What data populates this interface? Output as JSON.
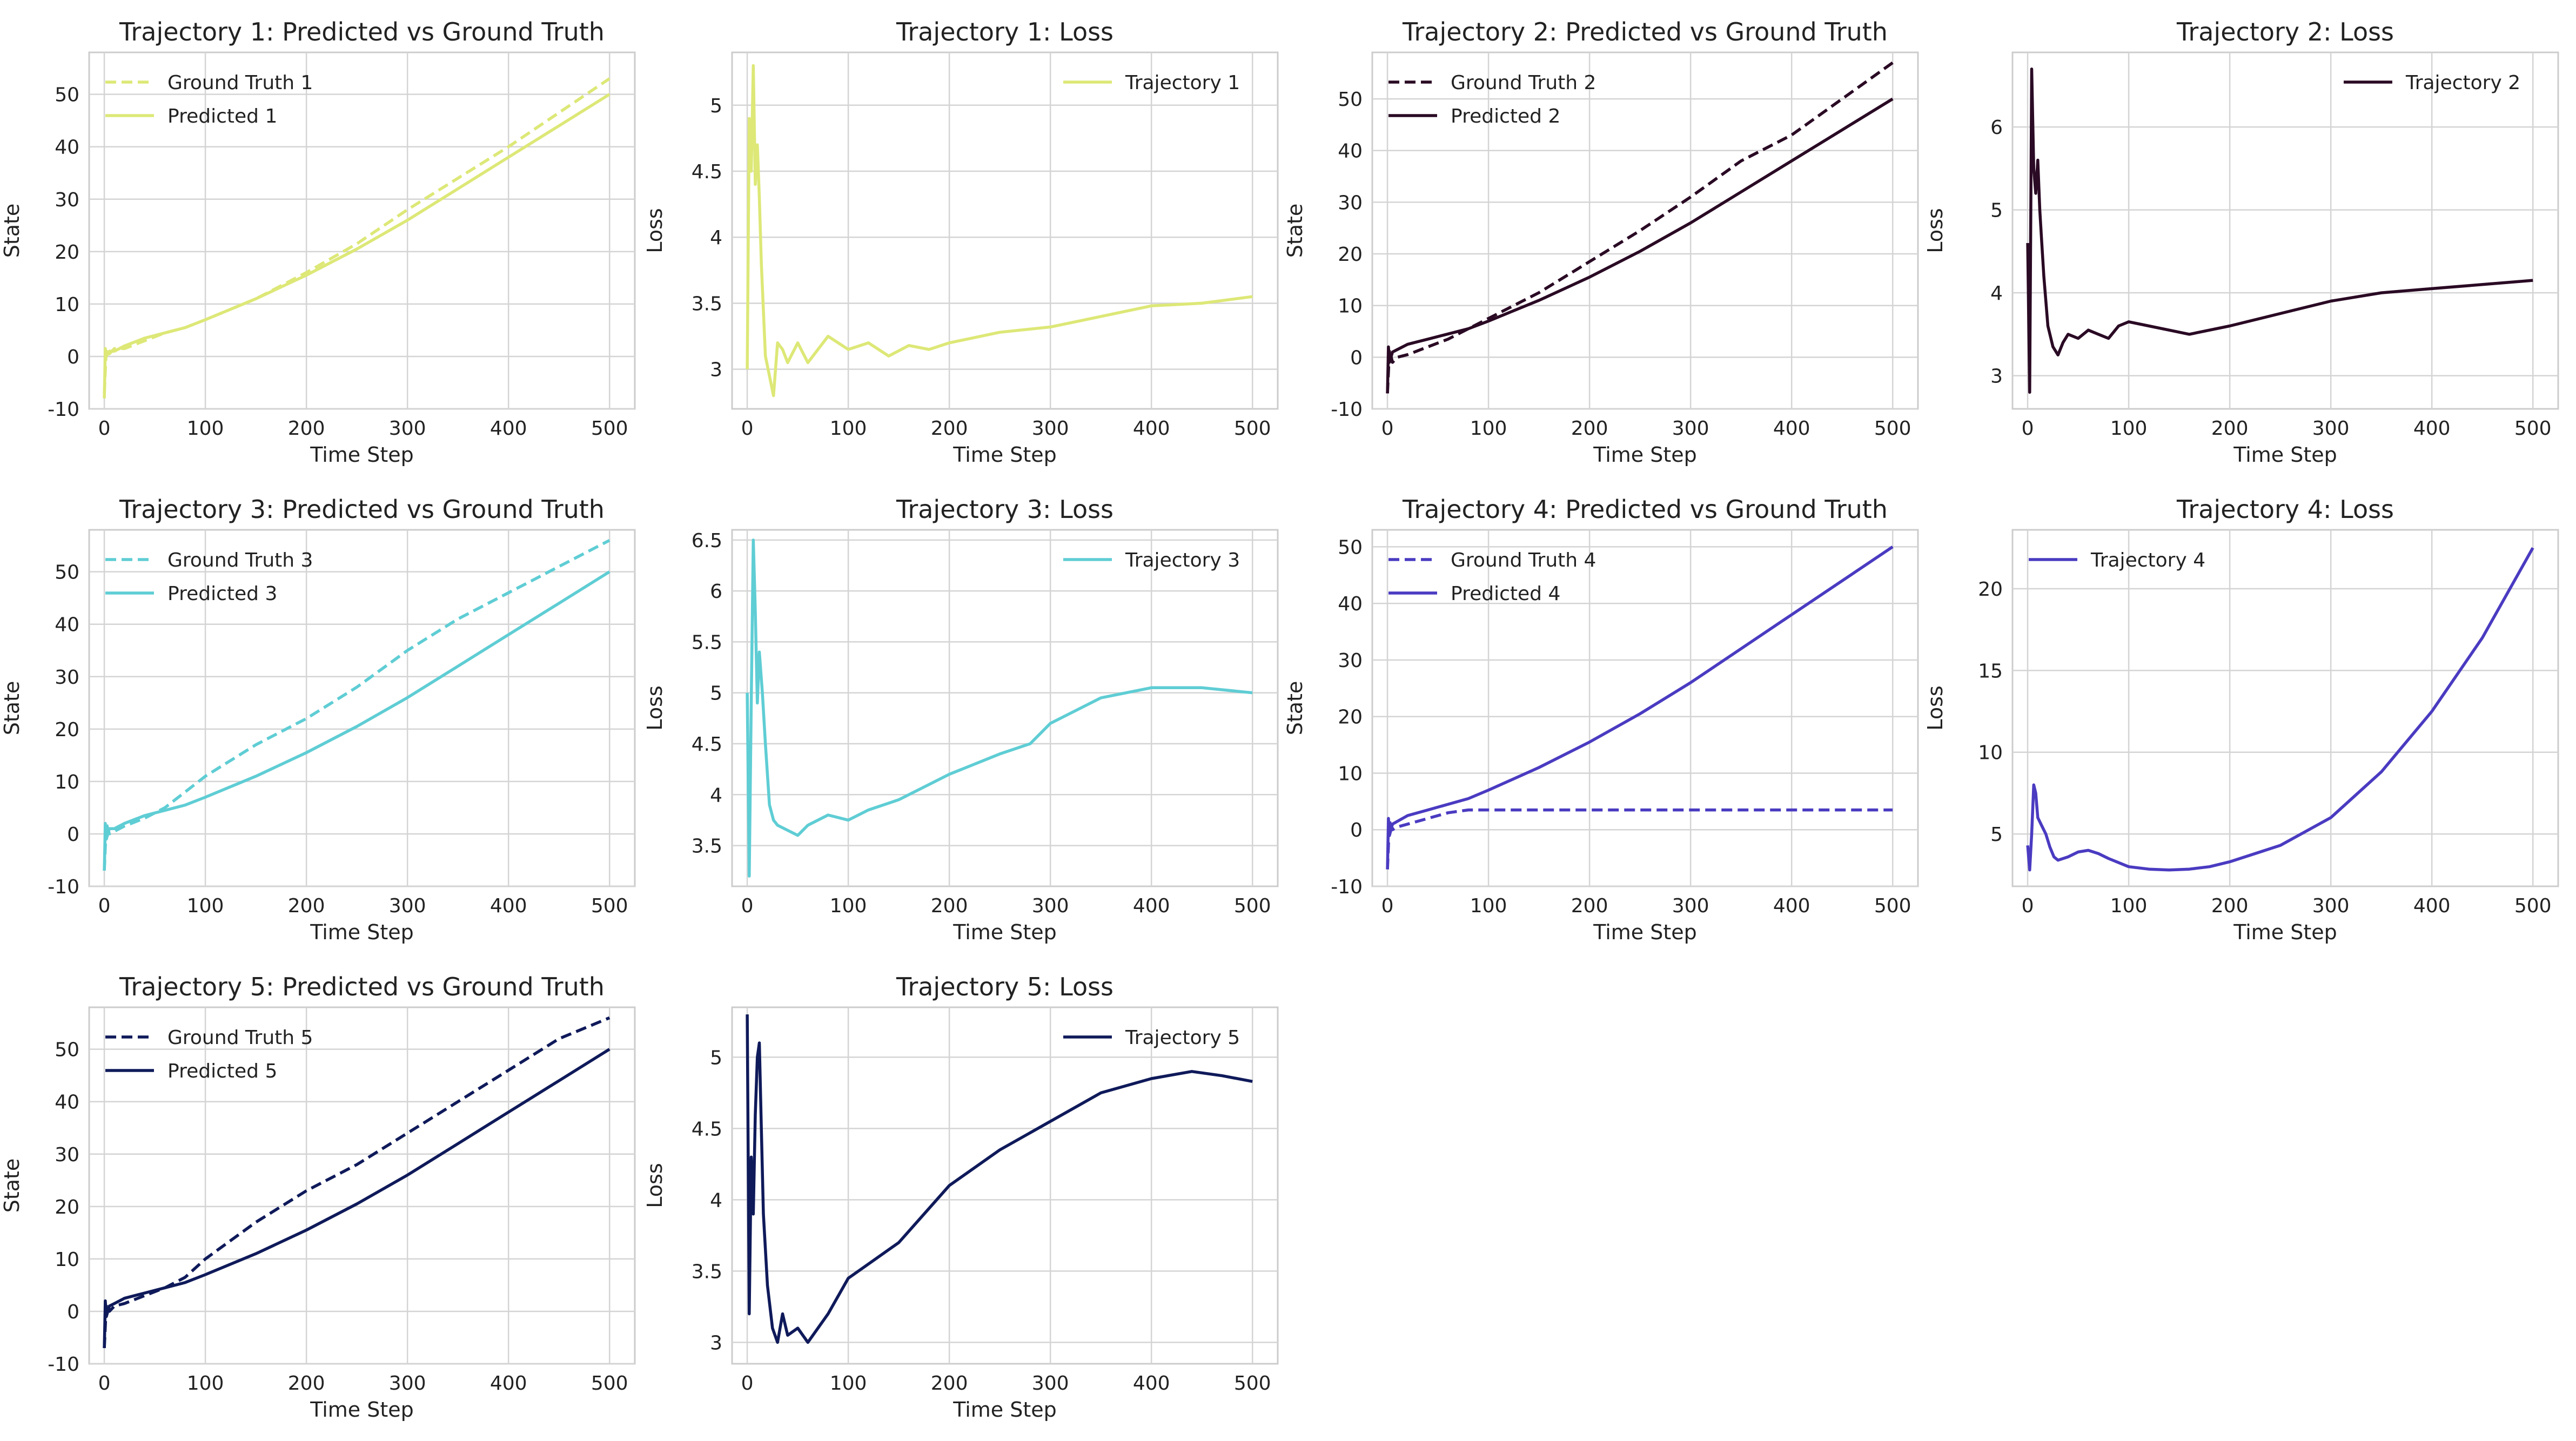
{
  "chart_data": [
    {
      "type": "line",
      "title": "Trajectory 1: Predicted vs Ground Truth",
      "xlabel": "Time Step",
      "ylabel": "State",
      "xlim": [
        -15,
        525
      ],
      "ylim": [
        -10,
        58
      ],
      "xticks": [
        0,
        100,
        200,
        300,
        400,
        500
      ],
      "yticks": [
        -10,
        0,
        10,
        20,
        30,
        40,
        50
      ],
      "grid": true,
      "legend_position": "upper-left",
      "series": [
        {
          "name": "Ground Truth 1",
          "color": "#dde877",
          "dash": true,
          "x": [
            0,
            2,
            5,
            10,
            20,
            40,
            60,
            80,
            100,
            150,
            200,
            250,
            300,
            350,
            400,
            450,
            500
          ],
          "y": [
            -7,
            1.5,
            0.5,
            1.5,
            1.5,
            3,
            4.5,
            5.5,
            7,
            11,
            16,
            21.5,
            28,
            34,
            40,
            46.5,
            53
          ]
        },
        {
          "name": "Predicted 1",
          "color": "#dde877",
          "dash": false,
          "x": [
            0,
            1,
            2,
            5,
            10,
            20,
            40,
            60,
            80,
            100,
            150,
            200,
            250,
            300,
            350,
            400,
            450,
            500
          ],
          "y": [
            -8,
            1.5,
            0,
            1,
            1,
            2,
            3.5,
            4.5,
            5.5,
            7,
            11,
            15.5,
            20.5,
            26,
            32,
            38,
            44,
            50
          ]
        }
      ]
    },
    {
      "type": "line",
      "title": "Trajectory 1: Loss",
      "xlabel": "Time Step",
      "ylabel": "Loss",
      "xlim": [
        -15,
        525
      ],
      "ylim": [
        2.7,
        5.4
      ],
      "xticks": [
        0,
        100,
        200,
        300,
        400,
        500
      ],
      "yticks": [
        3.0,
        3.5,
        4.0,
        4.5,
        5.0
      ],
      "grid": true,
      "legend_position": "upper-right",
      "series": [
        {
          "name": "Trajectory 1",
          "color": "#dde877",
          "dash": false,
          "x": [
            0,
            2,
            4,
            6,
            8,
            10,
            12,
            14,
            18,
            22,
            26,
            30,
            35,
            40,
            50,
            60,
            70,
            80,
            100,
            120,
            140,
            160,
            180,
            200,
            250,
            300,
            350,
            400,
            450,
            500
          ],
          "y": [
            3.0,
            4.9,
            4.5,
            5.3,
            4.4,
            4.7,
            4.3,
            3.8,
            3.1,
            2.95,
            2.8,
            3.2,
            3.15,
            3.05,
            3.2,
            3.05,
            3.15,
            3.25,
            3.15,
            3.2,
            3.1,
            3.18,
            3.15,
            3.2,
            3.28,
            3.32,
            3.4,
            3.48,
            3.5,
            3.55
          ]
        }
      ]
    },
    {
      "type": "line",
      "title": "Trajectory 2: Predicted vs Ground Truth",
      "xlabel": "Time Step",
      "ylabel": "State",
      "xlim": [
        -15,
        525
      ],
      "ylim": [
        -10,
        59
      ],
      "xticks": [
        0,
        100,
        200,
        300,
        400,
        500
      ],
      "yticks": [
        -10,
        0,
        10,
        20,
        30,
        40,
        50
      ],
      "grid": true,
      "legend_position": "upper-left",
      "series": [
        {
          "name": "Ground Truth 2",
          "color": "#2a0a24",
          "dash": true,
          "x": [
            0,
            2,
            5,
            10,
            20,
            40,
            60,
            80,
            100,
            150,
            200,
            250,
            300,
            350,
            400,
            450,
            500
          ],
          "y": [
            -7,
            1.5,
            -1,
            0,
            0.5,
            2,
            3.5,
            5.5,
            7.5,
            12.5,
            18.5,
            24.5,
            31,
            38,
            43,
            50,
            57
          ]
        },
        {
          "name": "Predicted 2",
          "color": "#2a0a24",
          "dash": false,
          "x": [
            0,
            1,
            2,
            5,
            10,
            20,
            40,
            60,
            80,
            100,
            150,
            200,
            250,
            300,
            350,
            400,
            450,
            500
          ],
          "y": [
            -7,
            2,
            -1,
            1,
            1.5,
            2.5,
            3.5,
            4.5,
            5.5,
            7,
            11,
            15.5,
            20.5,
            26,
            32,
            38,
            44,
            50
          ]
        }
      ]
    },
    {
      "type": "line",
      "title": "Trajectory 2: Loss",
      "xlabel": "Time Step",
      "ylabel": "Loss",
      "xlim": [
        -15,
        525
      ],
      "ylim": [
        2.6,
        6.9
      ],
      "xticks": [
        0,
        100,
        200,
        300,
        400,
        500
      ],
      "yticks": [
        3,
        4,
        5,
        6
      ],
      "grid": true,
      "legend_position": "upper-right",
      "series": [
        {
          "name": "Trajectory 2",
          "color": "#2a0a24",
          "dash": false,
          "x": [
            0,
            2,
            4,
            6,
            8,
            10,
            12,
            14,
            16,
            20,
            25,
            30,
            35,
            40,
            50,
            60,
            70,
            80,
            90,
            100,
            120,
            140,
            160,
            180,
            200,
            250,
            300,
            350,
            400,
            450,
            500
          ],
          "y": [
            4.6,
            2.8,
            6.7,
            5.5,
            5.2,
            5.6,
            5.0,
            4.6,
            4.2,
            3.6,
            3.35,
            3.25,
            3.4,
            3.5,
            3.45,
            3.55,
            3.5,
            3.45,
            3.6,
            3.65,
            3.6,
            3.55,
            3.5,
            3.55,
            3.6,
            3.75,
            3.9,
            4.0,
            4.05,
            4.1,
            4.15
          ]
        }
      ]
    },
    {
      "type": "line",
      "title": "Trajectory 3: Predicted vs Ground Truth",
      "xlabel": "Time Step",
      "ylabel": "State",
      "xlim": [
        -15,
        525
      ],
      "ylim": [
        -10,
        58
      ],
      "xticks": [
        0,
        100,
        200,
        300,
        400,
        500
      ],
      "yticks": [
        -10,
        0,
        10,
        20,
        30,
        40,
        50
      ],
      "grid": true,
      "legend_position": "upper-left",
      "series": [
        {
          "name": "Ground Truth 3",
          "color": "#5fcdd4",
          "dash": true,
          "x": [
            0,
            2,
            5,
            10,
            20,
            40,
            60,
            80,
            100,
            150,
            200,
            250,
            300,
            350,
            400,
            450,
            500
          ],
          "y": [
            -7,
            2,
            0,
            0.5,
            1.5,
            3,
            5,
            8,
            11,
            17,
            22,
            28,
            35,
            41,
            46,
            51,
            56
          ]
        },
        {
          "name": "Predicted 3",
          "color": "#5fcdd4",
          "dash": false,
          "x": [
            0,
            1,
            2,
            5,
            10,
            20,
            40,
            60,
            80,
            100,
            150,
            200,
            250,
            300,
            350,
            400,
            450,
            500
          ],
          "y": [
            -7,
            2,
            -1,
            1,
            1,
            2,
            3.5,
            4.5,
            5.5,
            7,
            11,
            15.5,
            20.5,
            26,
            32,
            38,
            44,
            50
          ]
        }
      ]
    },
    {
      "type": "line",
      "title": "Trajectory 3: Loss",
      "xlabel": "Time Step",
      "ylabel": "Loss",
      "xlim": [
        -15,
        525
      ],
      "ylim": [
        3.1,
        6.6
      ],
      "xticks": [
        0,
        100,
        200,
        300,
        400,
        500
      ],
      "yticks": [
        3.5,
        4.0,
        4.5,
        5.0,
        5.5,
        6.0,
        6.5
      ],
      "grid": true,
      "legend_position": "upper-right",
      "series": [
        {
          "name": "Trajectory 3",
          "color": "#5fcdd4",
          "dash": false,
          "x": [
            0,
            2,
            4,
            6,
            8,
            10,
            12,
            15,
            18,
            22,
            26,
            30,
            40,
            50,
            60,
            80,
            100,
            120,
            150,
            180,
            200,
            250,
            280,
            300,
            350,
            400,
            450,
            500
          ],
          "y": [
            5.0,
            3.2,
            4.9,
            6.5,
            5.8,
            4.9,
            5.4,
            5.0,
            4.5,
            3.9,
            3.75,
            3.7,
            3.65,
            3.6,
            3.7,
            3.8,
            3.75,
            3.85,
            3.95,
            4.1,
            4.2,
            4.4,
            4.5,
            4.7,
            4.95,
            5.05,
            5.05,
            5.0
          ]
        }
      ]
    },
    {
      "type": "line",
      "title": "Trajectory 4: Predicted vs Ground Truth",
      "xlabel": "Time Step",
      "ylabel": "State",
      "xlim": [
        -15,
        525
      ],
      "ylim": [
        -10,
        53
      ],
      "xticks": [
        0,
        100,
        200,
        300,
        400,
        500
      ],
      "yticks": [
        -10,
        0,
        10,
        20,
        30,
        40,
        50
      ],
      "grid": true,
      "legend_position": "upper-left",
      "series": [
        {
          "name": "Ground Truth 4",
          "color": "#4a3bc1",
          "dash": true,
          "x": [
            0,
            2,
            5,
            10,
            20,
            40,
            60,
            80,
            100,
            150,
            200,
            300,
            400,
            500
          ],
          "y": [
            -7,
            1.5,
            0,
            0.5,
            1,
            2,
            3,
            3.5,
            3.5,
            3.5,
            3.5,
            3.5,
            3.5,
            3.5
          ]
        },
        {
          "name": "Predicted 4",
          "color": "#4a3bc1",
          "dash": false,
          "x": [
            0,
            1,
            2,
            5,
            10,
            20,
            40,
            60,
            80,
            100,
            150,
            200,
            250,
            300,
            350,
            400,
            450,
            500
          ],
          "y": [
            -7,
            2,
            -1,
            1,
            1.5,
            2.5,
            3.5,
            4.5,
            5.5,
            7,
            11,
            15.5,
            20.5,
            26,
            32,
            38,
            44,
            50
          ]
        }
      ]
    },
    {
      "type": "line",
      "title": "Trajectory 4: Loss",
      "xlabel": "Time Step",
      "ylabel": "Loss",
      "xlim": [
        -15,
        525
      ],
      "ylim": [
        1.8,
        23.6
      ],
      "xticks": [
        0,
        100,
        200,
        300,
        400,
        500
      ],
      "yticks": [
        5,
        10,
        15,
        20
      ],
      "grid": true,
      "legend_position": "upper-left",
      "series": [
        {
          "name": "Trajectory 4",
          "color": "#4a3bc1",
          "dash": false,
          "x": [
            0,
            2,
            4,
            6,
            8,
            10,
            14,
            18,
            22,
            26,
            30,
            40,
            50,
            60,
            70,
            80,
            100,
            120,
            140,
            160,
            180,
            200,
            250,
            300,
            350,
            400,
            450,
            500
          ],
          "y": [
            4.3,
            2.8,
            5.0,
            8.0,
            7.5,
            6.0,
            5.5,
            5.0,
            4.2,
            3.6,
            3.4,
            3.6,
            3.9,
            4.0,
            3.8,
            3.5,
            3.0,
            2.85,
            2.8,
            2.85,
            3.0,
            3.3,
            4.3,
            6.0,
            8.8,
            12.5,
            17.0,
            22.5
          ]
        }
      ]
    },
    {
      "type": "line",
      "title": "Trajectory 5: Predicted vs Ground Truth",
      "xlabel": "Time Step",
      "ylabel": "State",
      "xlim": [
        -15,
        525
      ],
      "ylim": [
        -10,
        58
      ],
      "xticks": [
        0,
        100,
        200,
        300,
        400,
        500
      ],
      "yticks": [
        -10,
        0,
        10,
        20,
        30,
        40,
        50
      ],
      "grid": true,
      "legend_position": "upper-left",
      "series": [
        {
          "name": "Ground Truth 5",
          "color": "#0f1a5a",
          "dash": true,
          "x": [
            0,
            2,
            5,
            10,
            20,
            40,
            60,
            80,
            100,
            150,
            200,
            250,
            300,
            350,
            400,
            450,
            500
          ],
          "y": [
            -7,
            1.5,
            0,
            1,
            1.5,
            3,
            4.5,
            6.5,
            10,
            17,
            23,
            28,
            34,
            40,
            46,
            52,
            56
          ]
        },
        {
          "name": "Predicted 5",
          "color": "#0f1a5a",
          "dash": false,
          "x": [
            0,
            1,
            2,
            5,
            10,
            20,
            40,
            60,
            80,
            100,
            150,
            200,
            250,
            300,
            350,
            400,
            450,
            500
          ],
          "y": [
            -7,
            2,
            -1,
            1,
            1.5,
            2.5,
            3.5,
            4.5,
            5.5,
            7,
            11,
            15.5,
            20.5,
            26,
            32,
            38,
            44,
            50
          ]
        }
      ]
    },
    {
      "type": "line",
      "title": "Trajectory 5: Loss",
      "xlabel": "Time Step",
      "ylabel": "Loss",
      "xlim": [
        -15,
        525
      ],
      "ylim": [
        2.85,
        5.35
      ],
      "xticks": [
        0,
        100,
        200,
        300,
        400,
        500
      ],
      "yticks": [
        3.0,
        3.5,
        4.0,
        4.5,
        5.0
      ],
      "grid": true,
      "legend_position": "upper-right",
      "series": [
        {
          "name": "Trajectory 5",
          "color": "#0f1a5a",
          "dash": false,
          "x": [
            0,
            2,
            4,
            6,
            8,
            10,
            12,
            14,
            16,
            20,
            25,
            30,
            35,
            40,
            50,
            60,
            70,
            80,
            100,
            120,
            150,
            200,
            250,
            300,
            350,
            400,
            440,
            470,
            500
          ],
          "y": [
            5.3,
            3.2,
            4.3,
            3.9,
            4.6,
            5.0,
            5.1,
            4.5,
            3.9,
            3.4,
            3.1,
            3.0,
            3.2,
            3.05,
            3.1,
            3.0,
            3.1,
            3.2,
            3.45,
            3.55,
            3.7,
            4.1,
            4.35,
            4.55,
            4.75,
            4.85,
            4.9,
            4.87,
            4.83
          ]
        }
      ]
    }
  ]
}
